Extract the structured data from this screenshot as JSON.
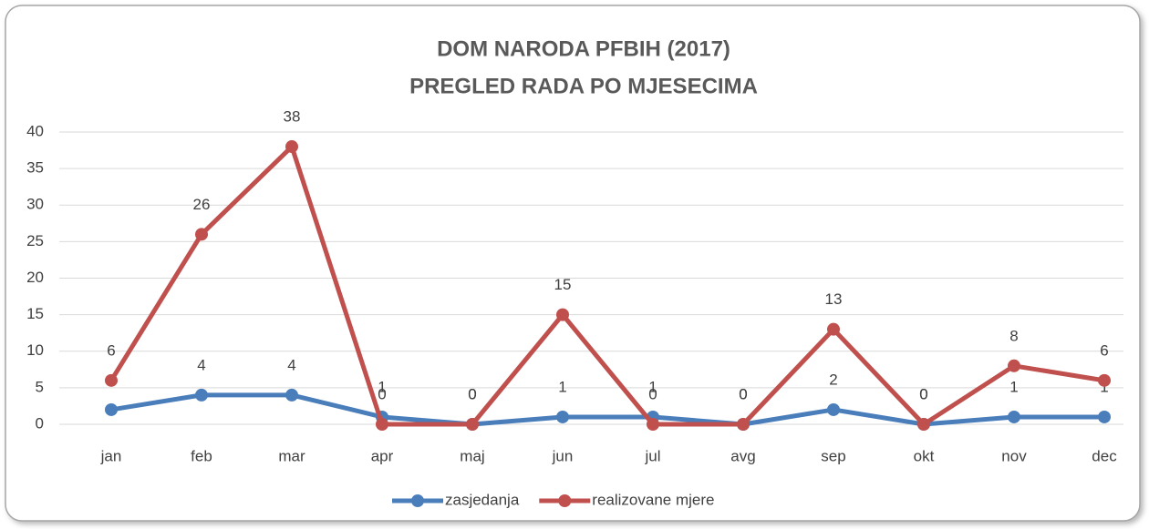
{
  "chart_data": {
    "type": "line",
    "title": "DOM NARODA PFBIH (2017)",
    "subtitle": "PREGLED RADA PO MJESECIMA",
    "categories": [
      "jan",
      "feb",
      "mar",
      "apr",
      "maj",
      "jun",
      "jul",
      "avg",
      "sep",
      "okt",
      "nov",
      "dec"
    ],
    "series": [
      {
        "name": "zasjedanja",
        "color": "#4a7ebb",
        "values": [
          2,
          4,
          4,
          1,
          0,
          1,
          1,
          0,
          2,
          0,
          1,
          1
        ]
      },
      {
        "name": "realizovane mjere",
        "color": "#c0504d",
        "values": [
          6,
          26,
          38,
          0,
          0,
          15,
          0,
          0,
          13,
          0,
          8,
          6
        ]
      }
    ],
    "ylim": [
      0,
      40
    ],
    "yticks": [
      0,
      5,
      10,
      15,
      20,
      25,
      30,
      35,
      40
    ],
    "grid": true,
    "legend": "bottom"
  }
}
